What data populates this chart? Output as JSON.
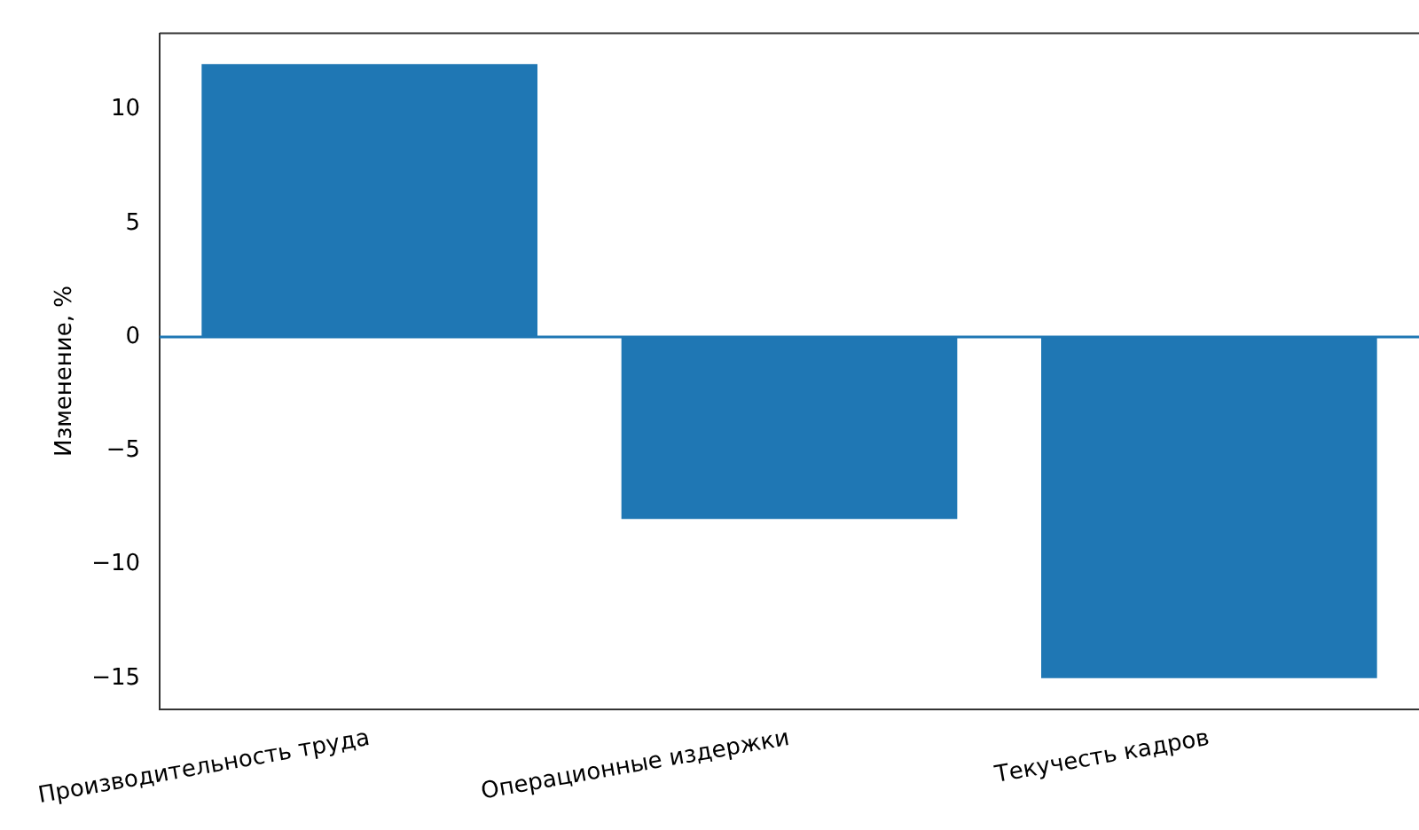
{
  "chart_data": {
    "type": "bar",
    "ylabel": "Изменение, %",
    "categories": [
      "Производительность труда",
      "Операционные издержки",
      "Текучесть кадров"
    ],
    "values": [
      12,
      -8,
      -15
    ],
    "color": "#1f77b4",
    "ylim": [
      -16.35,
      13.35
    ],
    "yticks": [
      -15,
      -10,
      -5,
      0,
      5,
      10
    ],
    "grid": false,
    "legend": false,
    "ref_lines": [
      {
        "axis": "y",
        "value": 0,
        "color": "#1f77b4"
      }
    ]
  }
}
